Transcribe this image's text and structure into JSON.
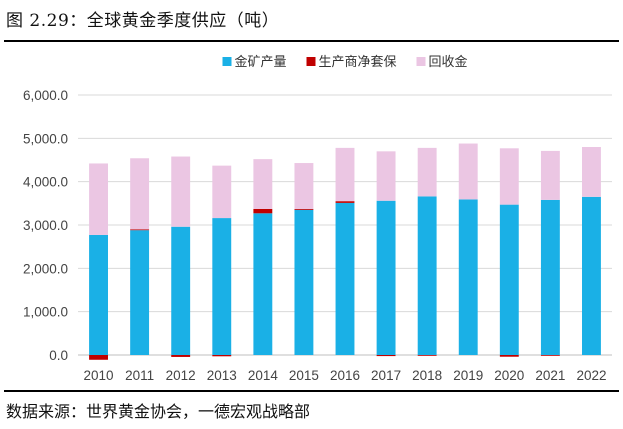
{
  "page": {
    "title": "图 2.29：全球黄金季度供应（吨）",
    "source": "数据来源：世界黄金协会，一德宏观战略部"
  },
  "colors": {
    "mine": "#1AB0E6",
    "hedging": "#C00000",
    "recycle": "#EBC6E3",
    "grid": "#D9D9D9",
    "axis": "#BFBFBF"
  },
  "chart_data": {
    "type": "bar",
    "stacked": true,
    "title": "",
    "xlabel": "",
    "ylabel": "",
    "categories": [
      "2010",
      "2011",
      "2012",
      "2013",
      "2014",
      "2015",
      "2016",
      "2017",
      "2018",
      "2019",
      "2020",
      "2021",
      "2022"
    ],
    "series": [
      {
        "name": "金矿产量",
        "color_key": "mine",
        "values": [
          2770,
          2880,
          2960,
          3160,
          3270,
          3350,
          3510,
          3560,
          3660,
          3590,
          3470,
          3580,
          3650
        ]
      },
      {
        "name": "生产商净套保",
        "color_key": "hedging",
        "values": [
          -110,
          20,
          -45,
          -30,
          100,
          20,
          40,
          -25,
          -15,
          0,
          -40,
          -10,
          0
        ]
      },
      {
        "name": "回收金",
        "color_key": "recycle",
        "values": [
          1650,
          1640,
          1620,
          1210,
          1150,
          1060,
          1230,
          1140,
          1120,
          1290,
          1300,
          1130,
          1150
        ]
      }
    ],
    "yticks": [
      "0.0",
      "1,000.0",
      "2,000.0",
      "3,000.0",
      "4,000.0",
      "5,000.0",
      "6,000.0"
    ],
    "ylim": [
      0,
      6000
    ],
    "grid": true,
    "legend_position": "top-center"
  }
}
